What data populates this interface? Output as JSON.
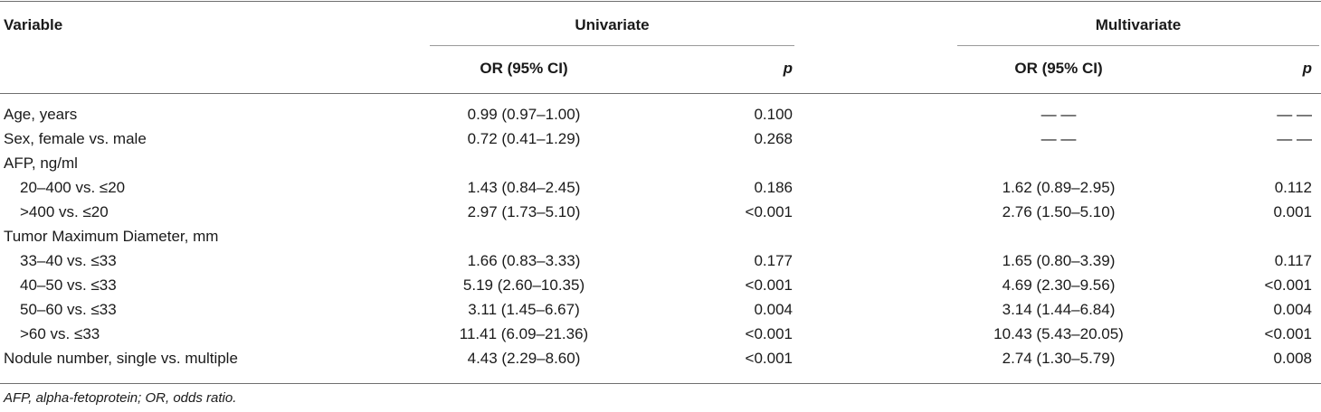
{
  "header": {
    "variable": "Variable",
    "univariate": "Univariate",
    "multivariate": "Multivariate",
    "or_ci": "OR (95% CI)",
    "p": "p"
  },
  "rows": [
    {
      "label": "Age, years",
      "uni_or": "0.99 (0.97–1.00)",
      "uni_p": "0.100",
      "multi_or": "— —",
      "multi_p": "— —"
    },
    {
      "label": "Sex, female vs. male",
      "uni_or": "0.72 (0.41–1.29)",
      "uni_p": "0.268",
      "multi_or": "— —",
      "multi_p": "— —"
    },
    {
      "label": "AFP, ng/ml",
      "uni_or": "",
      "uni_p": "",
      "multi_or": "",
      "multi_p": ""
    },
    {
      "label": "20–400 vs. ≤20",
      "uni_or": "1.43 (0.84–2.45)",
      "uni_p": "0.186",
      "multi_or": "1.62 (0.89–2.95)",
      "multi_p": "0.112"
    },
    {
      "label": ">400 vs. ≤20",
      "uni_or": "2.97 (1.73–5.10)",
      "uni_p": "<0.001",
      "multi_or": "2.76 (1.50–5.10)",
      "multi_p": "0.001"
    },
    {
      "label": "Tumor Maximum Diameter, mm",
      "uni_or": "",
      "uni_p": "",
      "multi_or": "",
      "multi_p": ""
    },
    {
      "label": "33–40 vs. ≤33",
      "uni_or": "1.66 (0.83–3.33)",
      "uni_p": "0.177",
      "multi_or": "1.65 (0.80–3.39)",
      "multi_p": "0.117"
    },
    {
      "label": "40–50 vs. ≤33",
      "uni_or": "5.19 (2.60–10.35)",
      "uni_p": "<0.001",
      "multi_or": "4.69 (2.30–9.56)",
      "multi_p": "<0.001"
    },
    {
      "label": "50–60 vs. ≤33",
      "uni_or": "3.11 (1.45–6.67)",
      "uni_p": "0.004",
      "multi_or": "3.14 (1.44–6.84)",
      "multi_p": "0.004"
    },
    {
      "label": ">60 vs. ≤33",
      "uni_or": "11.41 (6.09–21.36)",
      "uni_p": "<0.001",
      "multi_or": "10.43 (5.43–20.05)",
      "multi_p": "<0.001"
    },
    {
      "label": "Nodule number, single vs. multiple",
      "uni_or": "4.43 (2.29–8.60)",
      "uni_p": "<0.001",
      "multi_or": "2.74 (1.30–5.79)",
      "multi_p": "0.008"
    }
  ],
  "footnote": "AFP, alpha-fetoprotein; OR, odds ratio."
}
